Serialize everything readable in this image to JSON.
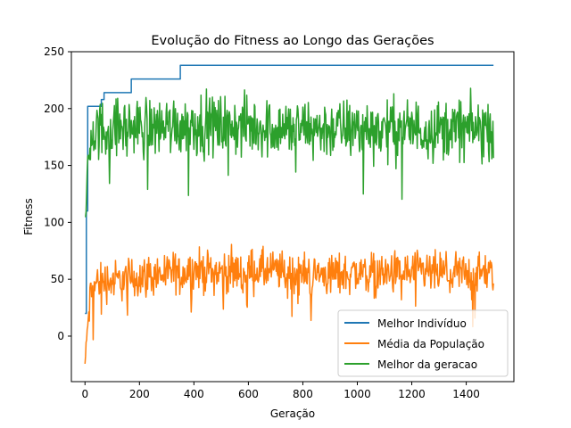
{
  "chart_data": {
    "type": "line",
    "title": "Evolução do Fitness ao Longo das Gerações",
    "xlabel": "Geração",
    "ylabel": "Fitness",
    "xlim": [
      -50,
      1575
    ],
    "ylim": [
      -40,
      250
    ],
    "xticks": [
      0,
      200,
      400,
      600,
      800,
      1000,
      1200,
      1400
    ],
    "yticks": [
      0,
      50,
      100,
      150,
      200,
      250
    ],
    "grid": false,
    "legend_position": "lower-right",
    "series": [
      {
        "name": "Melhor Indivíduo",
        "color": "#1f77b4",
        "step": true,
        "x": [
          0,
          5,
          10,
          20,
          60,
          70,
          170,
          350,
          1500
        ],
        "y": [
          20,
          110,
          202,
          202,
          208,
          214,
          226,
          238,
          238
        ]
      },
      {
        "name": "Média da População",
        "color": "#ff7f0e",
        "noisy": true,
        "x": [
          0,
          10,
          20,
          50,
          100,
          150,
          200,
          300,
          400,
          500,
          600,
          700,
          800,
          900,
          1000,
          1100,
          1200,
          1300,
          1400,
          1500
        ],
        "y": [
          -25,
          10,
          35,
          50,
          48,
          50,
          52,
          55,
          58,
          56,
          58,
          57,
          55,
          54,
          56,
          55,
          56,
          55,
          55,
          55
        ],
        "spread": 14,
        "min": -28,
        "max": 83
      },
      {
        "name": "Melhor da geracao",
        "color": "#2ca02c",
        "noisy": true,
        "x": [
          0,
          5,
          15,
          30,
          100,
          200,
          300,
          400,
          500,
          600,
          700,
          800,
          900,
          1000,
          1100,
          1200,
          1300,
          1400,
          1500
        ],
        "y": [
          18,
          130,
          165,
          180,
          182,
          183,
          185,
          186,
          185,
          184,
          183,
          182,
          182,
          182,
          182,
          182,
          182,
          182,
          182
        ],
        "spread": 20,
        "min": 105,
        "max": 233
      }
    ]
  }
}
